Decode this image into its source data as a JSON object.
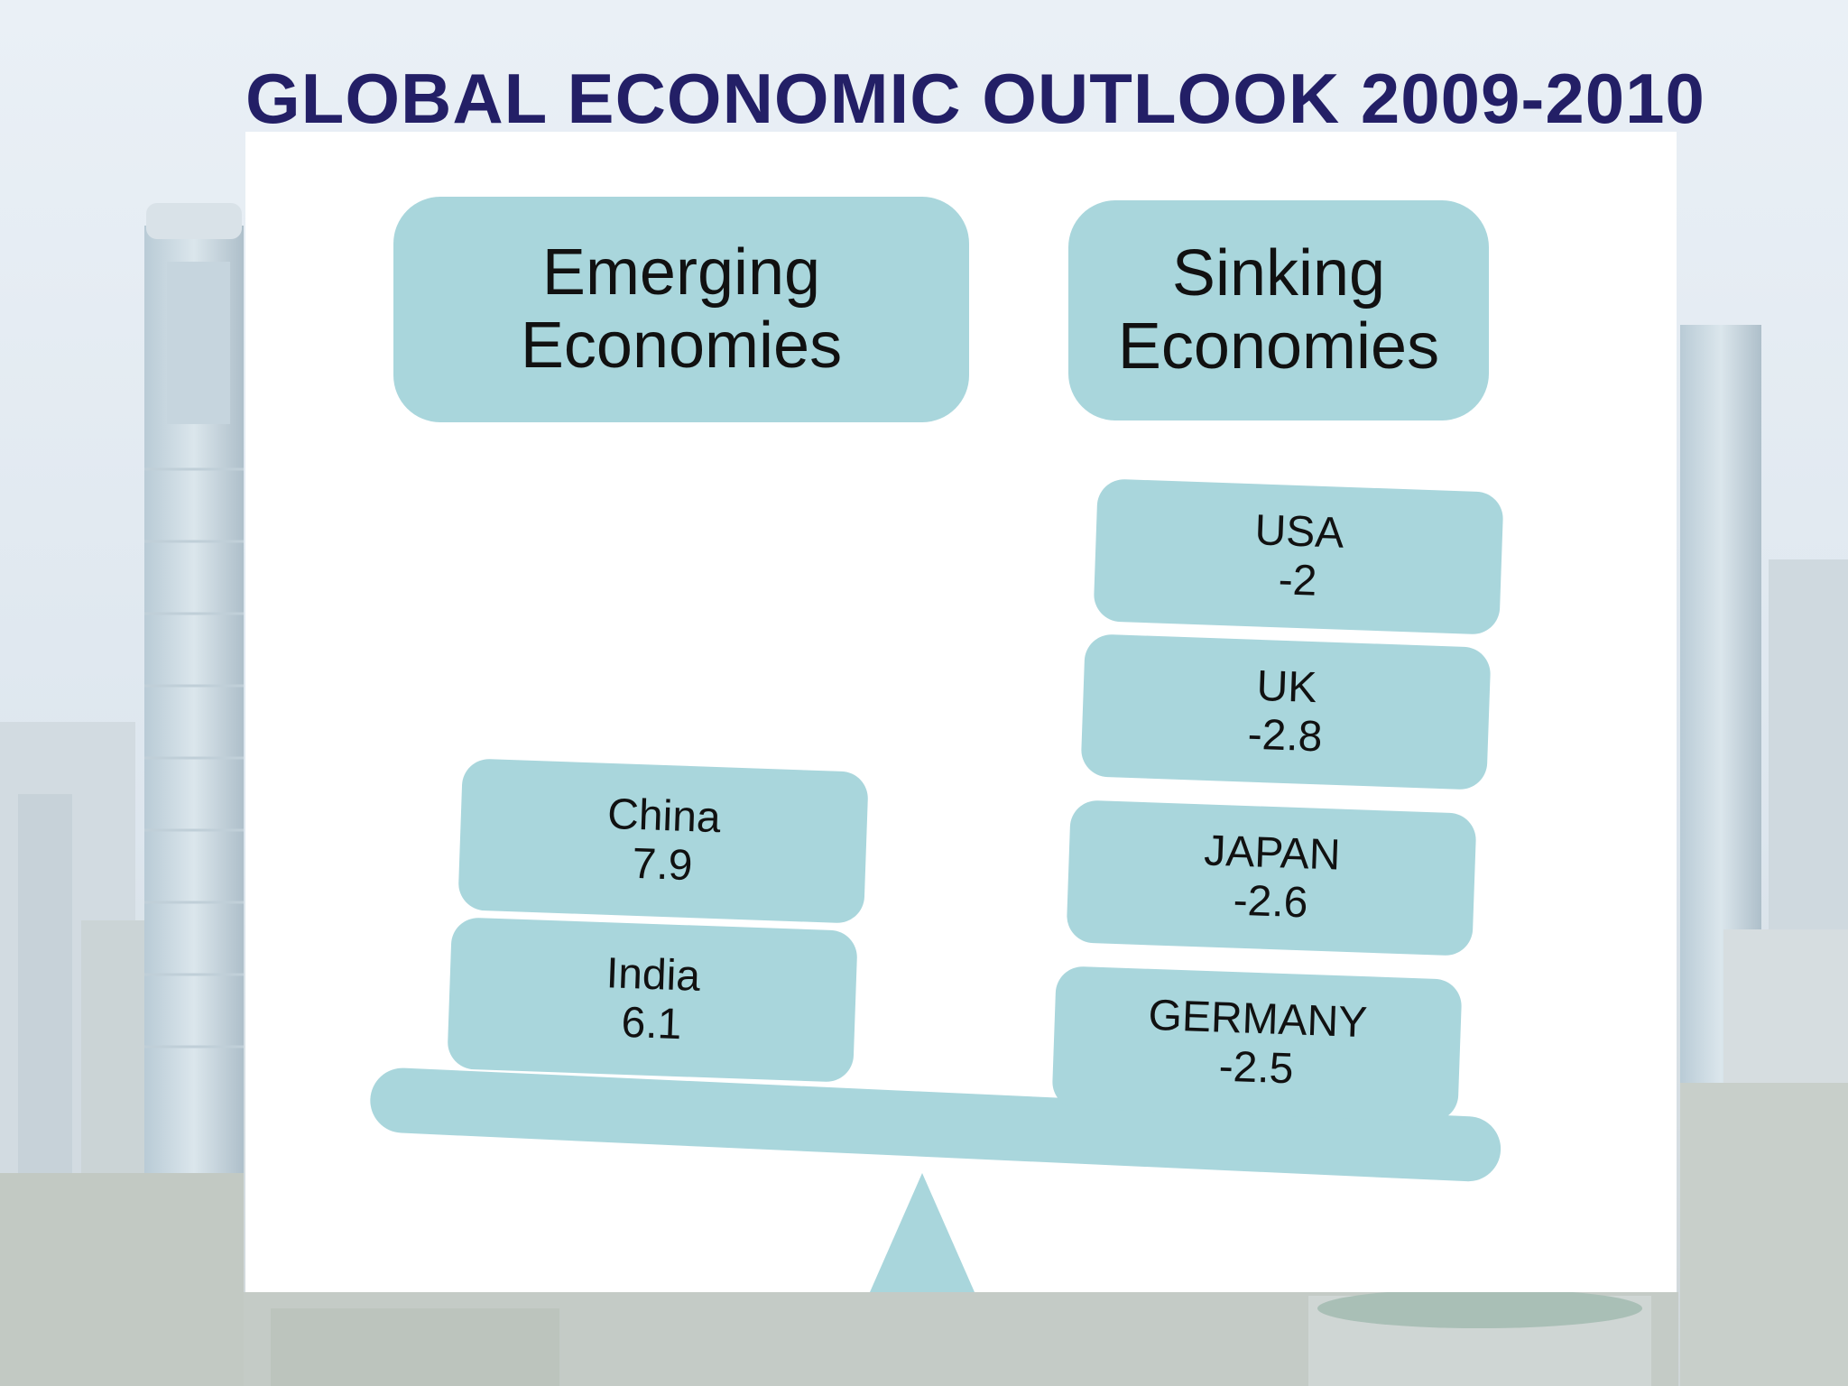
{
  "title": "GLOBAL ECONOMIC OUTLOOK 2009-2010",
  "colors": {
    "title": "#231f66",
    "box_fill": "#a9d6dc",
    "panel": "#ffffff",
    "text": "#111111"
  },
  "headers": {
    "emerging": {
      "line1": "Emerging",
      "line2": "Economies"
    },
    "sinking": {
      "line1": "Sinking",
      "line2": "Economies"
    }
  },
  "emerging": [
    {
      "name": "China",
      "value": "7.9"
    },
    {
      "name": "India",
      "value": "6.1"
    }
  ],
  "sinking": [
    {
      "name": "USA",
      "value": "-2"
    },
    {
      "name": "UK",
      "value": "-2.8"
    },
    {
      "name": "JAPAN",
      "value": "-2.6"
    },
    {
      "name": "GERMANY",
      "value": "-2.5"
    }
  ]
}
